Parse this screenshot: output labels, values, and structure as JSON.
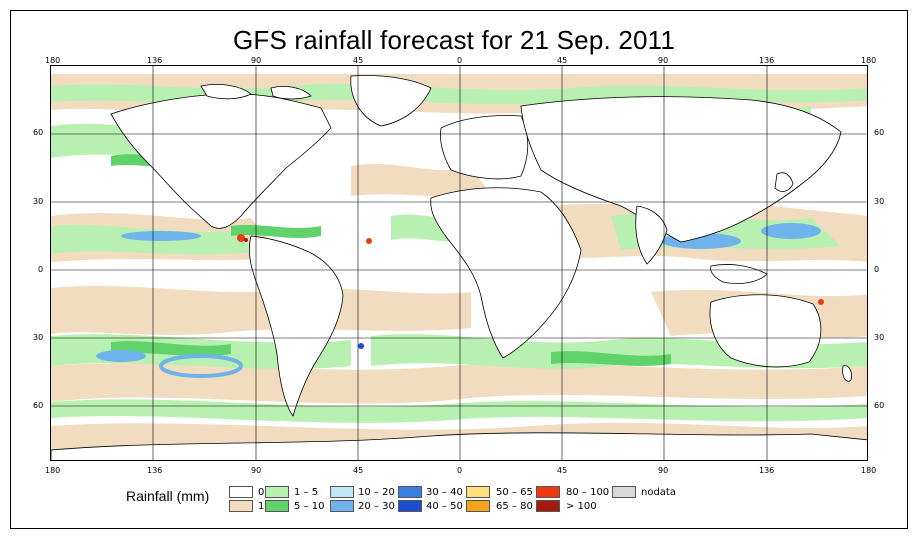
{
  "title": "GFS rainfall forecast for 21 Sep. 2011",
  "lon_labels": [
    "180",
    "136",
    "90",
    "45",
    "0",
    "45",
    "90",
    "136",
    "180"
  ],
  "lat_labels": [
    "60",
    "30",
    "0",
    "30",
    "60"
  ],
  "legend": {
    "title": "Rainfall (mm)",
    "items": [
      {
        "label": "0",
        "color": "#ffffff"
      },
      {
        "label": "1",
        "color": "#f1dcbf"
      },
      {
        "label": "1 – 5",
        "color": "#b7f0b0"
      },
      {
        "label": "5 – 10",
        "color": "#5fd26a"
      },
      {
        "label": "10 – 20",
        "color": "#bfe6f5"
      },
      {
        "label": "20 – 30",
        "color": "#6fb3ec"
      },
      {
        "label": "30 – 40",
        "color": "#3a7fe0"
      },
      {
        "label": "40 – 50",
        "color": "#1b4fd0"
      },
      {
        "label": "50 – 65",
        "color": "#ffe07a"
      },
      {
        "label": "65 – 80",
        "color": "#f5a31a"
      },
      {
        "label": "80 – 100",
        "color": "#ec3b12"
      },
      {
        "label": "> 100",
        "color": "#a51a12"
      },
      {
        "label": "nodata",
        "color": "#d9d9d9"
      }
    ]
  }
}
